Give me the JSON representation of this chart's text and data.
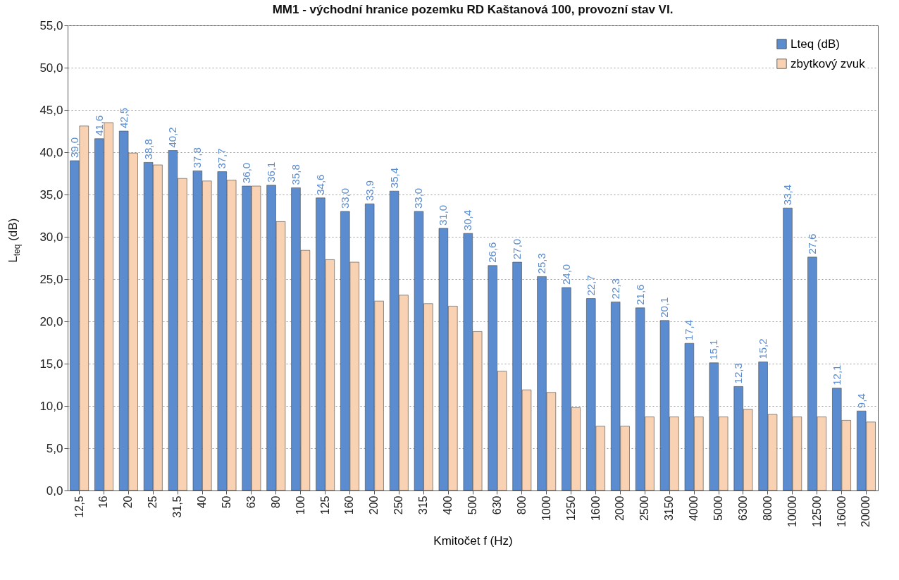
{
  "chart_data": {
    "type": "bar",
    "title": "MM1 - východní hranice pozemku RD Kaštanová 100, provozní stav VI.",
    "xlabel": "Kmitočet f (Hz)",
    "ylabel": "L$_{teq}$ (dB)",
    "categories": [
      "12,5",
      "16",
      "20",
      "25",
      "31,5",
      "40",
      "50",
      "63",
      "80",
      "100",
      "125",
      "160",
      "200",
      "250",
      "315",
      "400",
      "500",
      "630",
      "800",
      "1000",
      "1250",
      "1600",
      "2000",
      "2500",
      "3150",
      "4000",
      "5000",
      "6300",
      "8000",
      "10000",
      "12500",
      "16000",
      "20000"
    ],
    "series": [
      {
        "name": "Lteq (dB)",
        "color": "#5b8ccf",
        "values": [
          39.0,
          41.6,
          42.5,
          38.8,
          40.2,
          37.8,
          37.7,
          36.0,
          36.1,
          35.8,
          34.6,
          33.0,
          33.9,
          35.4,
          33.0,
          31.0,
          30.4,
          26.6,
          27.0,
          25.3,
          24.0,
          22.7,
          22.3,
          21.6,
          20.1,
          17.4,
          15.1,
          12.3,
          15.2,
          33.4,
          27.6,
          12.1,
          9.4
        ],
        "value_labels": [
          "39,0",
          "41,6",
          "42,5",
          "38,8",
          "40,2",
          "37,8",
          "37,7",
          "36,0",
          "36,1",
          "35,8",
          "34,6",
          "33,0",
          "33,9",
          "35,4",
          "33,0",
          "31,0",
          "30,4",
          "26,6",
          "27,0",
          "25,3",
          "24,0",
          "22,7",
          "22,3",
          "21,6",
          "20,1",
          "17,4",
          "15,1",
          "12,3",
          "15,2",
          "33,4",
          "27,6",
          "12,1",
          "9,4"
        ]
      },
      {
        "name": "zbytkový zvuk",
        "color": "#f8d2b2",
        "values": [
          43.1,
          43.5,
          39.9,
          38.5,
          36.9,
          36.6,
          36.7,
          36.0,
          31.8,
          28.4,
          27.3,
          27.0,
          22.4,
          23.1,
          22.1,
          21.8,
          18.8,
          14.1,
          11.9,
          11.6,
          9.8,
          7.6,
          7.6,
          8.7,
          8.7,
          8.7,
          8.7,
          9.6,
          9.0,
          8.7,
          8.7,
          8.3,
          8.1
        ]
      }
    ],
    "ylim": [
      0,
      55
    ],
    "yticks": [
      {
        "value": 0,
        "label": "0,0"
      },
      {
        "value": 5,
        "label": "5,0"
      },
      {
        "value": 10,
        "label": "10,0"
      },
      {
        "value": 15,
        "label": "15,0"
      },
      {
        "value": 20,
        "label": "20,0"
      },
      {
        "value": 25,
        "label": "25,0"
      },
      {
        "value": 30,
        "label": "30,0"
      },
      {
        "value": 35,
        "label": "35,0"
      },
      {
        "value": 40,
        "label": "40,0"
      },
      {
        "value": 45,
        "label": "45,0"
      },
      {
        "value": 50,
        "label": "50,0"
      },
      {
        "value": 55,
        "label": "55,0"
      }
    ],
    "grid": "y",
    "legend": "top right"
  }
}
